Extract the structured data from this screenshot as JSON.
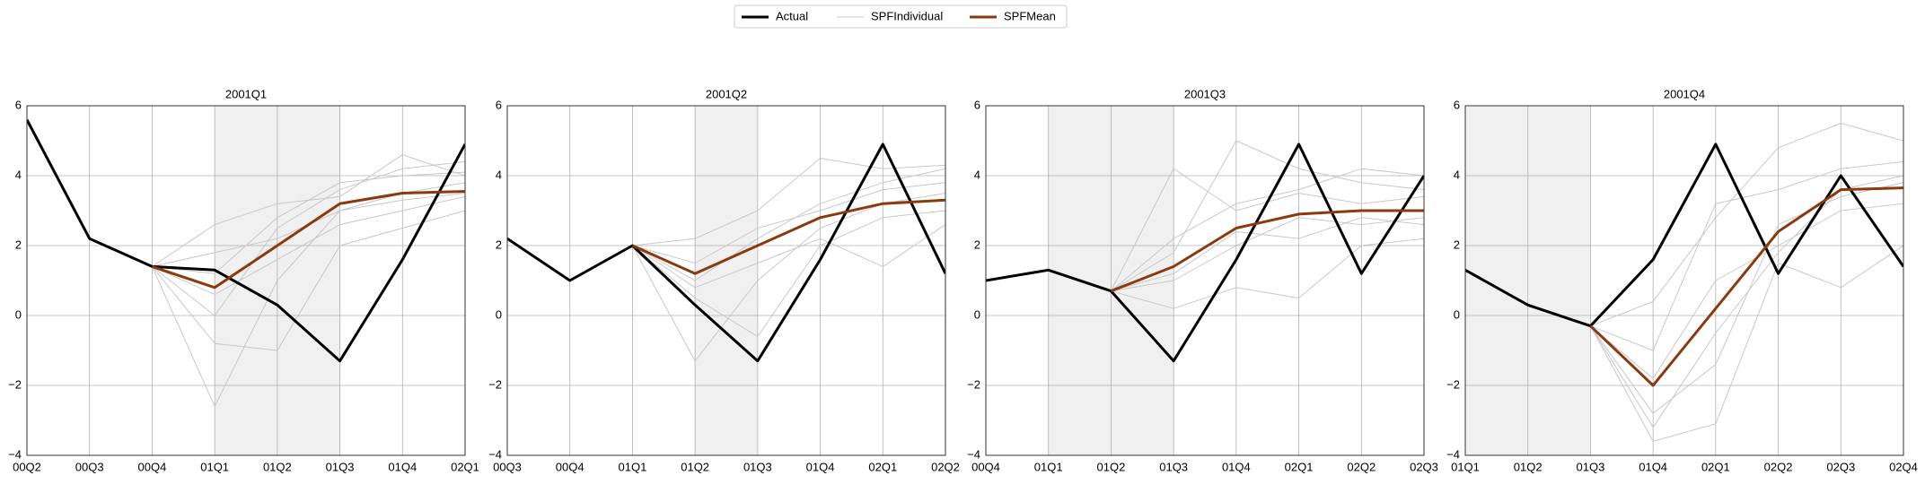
{
  "chart_data": [
    {
      "type": "line",
      "title": "2001Q1",
      "categories": [
        "00Q2",
        "00Q3",
        "00Q4",
        "01Q1",
        "01Q2",
        "01Q3",
        "01Q4",
        "02Q1"
      ],
      "shade": [
        "01Q1",
        "01Q3"
      ],
      "ylim": [
        -4,
        6
      ],
      "yticks": [
        {
          "value": -4,
          "label": "−4"
        },
        {
          "value": -2,
          "label": "−2"
        },
        0,
        2,
        4,
        6
      ],
      "grid": true,
      "series": [
        {
          "name": "Actual",
          "color": "#000000",
          "values": [
            5.6,
            2.2,
            1.4,
            1.3,
            0.3,
            -1.3,
            1.6,
            4.9
          ]
        },
        {
          "name": "SPFIndividual",
          "color": "#c8c8c8",
          "lines": [
            [
              null,
              null,
              1.4,
              -2.6,
              1.0,
              3.0,
              3.5,
              3.8
            ],
            [
              null,
              null,
              1.4,
              0.0,
              2.5,
              3.6,
              4.2,
              4.4
            ],
            [
              null,
              null,
              1.4,
              1.2,
              2.8,
              3.8,
              4.0,
              4.1
            ],
            [
              null,
              null,
              1.4,
              -0.8,
              -1.0,
              2.0,
              2.5,
              3.0
            ],
            [
              null,
              null,
              1.4,
              2.6,
              3.2,
              3.4,
              4.6,
              4.0
            ],
            [
              null,
              null,
              1.4,
              0.6,
              1.6,
              2.6,
              3.0,
              3.4
            ],
            [
              null,
              null,
              1.4,
              1.8,
              2.2,
              3.0,
              3.3,
              3.5
            ]
          ]
        },
        {
          "name": "SPFMean",
          "color": "#8b3a0e",
          "values": [
            null,
            null,
            1.4,
            0.8,
            2.0,
            3.2,
            3.5,
            3.55
          ]
        }
      ]
    },
    {
      "type": "line",
      "title": "2001Q2",
      "categories": [
        "00Q3",
        "00Q4",
        "01Q1",
        "01Q2",
        "01Q3",
        "01Q4",
        "02Q1",
        "02Q2"
      ],
      "shade": [
        "01Q2",
        "01Q3"
      ],
      "ylim": [
        -4,
        6
      ],
      "yticks": [
        {
          "value": -4,
          "label": "−4"
        },
        {
          "value": -2,
          "label": "−2"
        },
        0,
        2,
        4,
        6
      ],
      "grid": true,
      "series": [
        {
          "name": "Actual",
          "color": "#000000",
          "values": [
            2.2,
            1.0,
            2.0,
            0.3,
            -1.3,
            1.6,
            4.9,
            1.2
          ]
        },
        {
          "name": "SPFIndividual",
          "color": "#c8c8c8",
          "lines": [
            [
              null,
              null,
              2.0,
              -1.3,
              1.0,
              2.5,
              3.2,
              3.5
            ],
            [
              null,
              null,
              2.0,
              2.2,
              3.0,
              4.5,
              4.2,
              4.3
            ],
            [
              null,
              null,
              2.0,
              0.5,
              -0.6,
              2.0,
              2.8,
              3.0
            ],
            [
              null,
              null,
              2.0,
              1.5,
              2.5,
              3.0,
              3.6,
              3.8
            ],
            [
              null,
              null,
              2.0,
              0.8,
              1.5,
              2.2,
              1.4,
              2.6
            ],
            [
              null,
              null,
              2.0,
              1.0,
              2.2,
              3.2,
              3.8,
              4.2
            ]
          ]
        },
        {
          "name": "SPFMean",
          "color": "#8b3a0e",
          "values": [
            null,
            null,
            2.0,
            1.2,
            2.0,
            2.8,
            3.2,
            3.3
          ]
        }
      ]
    },
    {
      "type": "line",
      "title": "2001Q3",
      "categories": [
        "00Q4",
        "01Q1",
        "01Q2",
        "01Q3",
        "01Q4",
        "02Q1",
        "02Q2",
        "02Q3"
      ],
      "shade": [
        "01Q1",
        "01Q3"
      ],
      "ylim": [
        -4,
        6
      ],
      "yticks": [
        {
          "value": -4,
          "label": "−4"
        },
        {
          "value": -2,
          "label": "−2"
        },
        0,
        2,
        4,
        6
      ],
      "grid": true,
      "series": [
        {
          "name": "Actual",
          "color": "#000000",
          "values": [
            1.0,
            1.3,
            0.7,
            -1.3,
            1.6,
            4.9,
            1.2,
            4.0
          ]
        },
        {
          "name": "SPFIndividual",
          "color": "#c8c8c8",
          "lines": [
            [
              null,
              null,
              0.7,
              4.2,
              3.0,
              3.5,
              3.2,
              3.4
            ],
            [
              null,
              null,
              0.7,
              0.2,
              0.8,
              0.5,
              2.0,
              2.2
            ],
            [
              null,
              null,
              0.7,
              1.8,
              5.0,
              4.2,
              3.8,
              3.6
            ],
            [
              null,
              null,
              0.7,
              1.0,
              2.0,
              2.8,
              2.6,
              2.8
            ],
            [
              null,
              null,
              0.7,
              2.2,
              3.2,
              3.6,
              4.2,
              4.0
            ],
            [
              null,
              null,
              0.7,
              1.2,
              2.4,
              2.2,
              2.8,
              2.6
            ]
          ]
        },
        {
          "name": "SPFMean",
          "color": "#8b3a0e",
          "values": [
            null,
            null,
            0.7,
            1.4,
            2.5,
            2.9,
            3.0,
            3.0
          ]
        }
      ]
    },
    {
      "type": "line",
      "title": "2001Q4",
      "categories": [
        "01Q1",
        "01Q2",
        "01Q3",
        "01Q4",
        "02Q1",
        "02Q2",
        "02Q3",
        "02Q4"
      ],
      "shade": [
        "01Q1",
        "01Q3"
      ],
      "ylim": [
        -4,
        6
      ],
      "yticks": [
        {
          "value": -4,
          "label": "−4"
        },
        {
          "value": -2,
          "label": "−2"
        },
        0,
        2,
        4,
        6
      ],
      "grid": true,
      "series": [
        {
          "name": "Actual",
          "color": "#000000",
          "values": [
            1.3,
            0.3,
            -0.3,
            1.6,
            4.9,
            1.2,
            4.0,
            1.4
          ]
        },
        {
          "name": "SPFIndividual",
          "color": "#c8c8c8",
          "lines": [
            [
              null,
              null,
              -0.3,
              -3.6,
              -3.1,
              1.5,
              0.8,
              2.0
            ],
            [
              null,
              null,
              -0.3,
              0.4,
              2.8,
              4.8,
              5.5,
              5.0
            ],
            [
              null,
              null,
              -0.3,
              -1.0,
              3.2,
              3.6,
              4.2,
              4.4
            ],
            [
              null,
              null,
              -0.3,
              -2.8,
              -1.4,
              2.6,
              3.4,
              3.8
            ],
            [
              null,
              null,
              -0.3,
              -1.8,
              1.0,
              2.0,
              3.0,
              3.2
            ],
            [
              null,
              null,
              -0.3,
              -3.2,
              -0.5,
              1.8,
              3.6,
              4.0
            ]
          ]
        },
        {
          "name": "SPFMean",
          "color": "#8b3a0e",
          "values": [
            null,
            null,
            -0.3,
            -2.0,
            0.2,
            2.4,
            3.6,
            3.65
          ]
        }
      ]
    }
  ]
}
